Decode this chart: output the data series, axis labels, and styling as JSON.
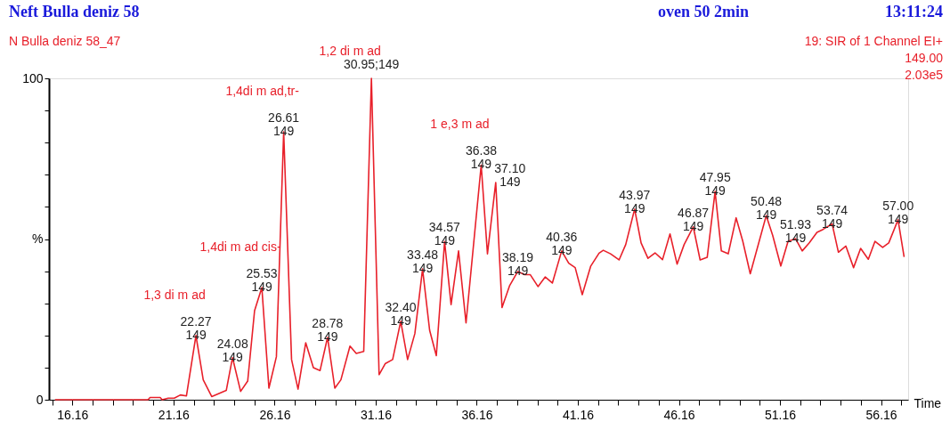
{
  "chart_data": {
    "type": "line",
    "title": "Neft Bulla deniz 58",
    "subtitle": "N Bulla deniz 58_47",
    "xlabel": "Time",
    "x": [
      15.3,
      19.9,
      20.0,
      20.5,
      20.6,
      20.9,
      21.2,
      21.5,
      21.8,
      22.27,
      22.63,
      23.05,
      23.77,
      24.08,
      24.48,
      24.83,
      25.17,
      25.53,
      25.88,
      26.25,
      26.61,
      27.0,
      27.32,
      27.7,
      28.08,
      28.41,
      28.78,
      29.14,
      29.44,
      29.89,
      30.2,
      30.57,
      30.95,
      31.33,
      31.63,
      32.0,
      32.4,
      32.74,
      33.1,
      33.48,
      33.83,
      34.16,
      34.57,
      34.89,
      35.26,
      35.63,
      36.38,
      36.69,
      37.1,
      37.41,
      37.78,
      38.19,
      38.53,
      38.81,
      39.19,
      39.55,
      39.9,
      40.36,
      40.71,
      41.03,
      41.38,
      41.8,
      42.21,
      42.42,
      42.78,
      43.2,
      43.53,
      43.97,
      44.29,
      44.63,
      44.98,
      45.35,
      45.72,
      46.07,
      46.42,
      46.87,
      47.21,
      47.56,
      47.95,
      48.26,
      48.6,
      48.99,
      49.32,
      49.69,
      50.48,
      50.8,
      51.2,
      51.56,
      51.93,
      52.26,
      52.61,
      52.99,
      53.29,
      53.74,
      54.05,
      54.42,
      54.8,
      55.15,
      55.53,
      55.86,
      56.24,
      56.54,
      57.0,
      57.3
    ],
    "series": [
      {
        "color": "#e8202a",
        "values": [
          0,
          0,
          0.7,
          0.7,
          0,
          0.5,
          0.5,
          1.5,
          1.2,
          20.0,
          6.2,
          1.0,
          2.9,
          13.1,
          2.6,
          5.8,
          27.7,
          34.9,
          3.6,
          13.4,
          83.4,
          12.5,
          3.3,
          17.7,
          10.0,
          9.1,
          19.4,
          3.6,
          6.2,
          16.7,
          14.4,
          15.0,
          100,
          7.8,
          11.2,
          12.5,
          24.4,
          12.5,
          20.6,
          40.7,
          21.6,
          13.7,
          49.2,
          29.6,
          46.3,
          23.9,
          73.0,
          45.4,
          67.6,
          28.7,
          35.4,
          39.9,
          38.9,
          38.9,
          35.2,
          38.2,
          36.3,
          46.3,
          42.5,
          41.1,
          32.7,
          41.6,
          45.6,
          46.5,
          45.4,
          43.5,
          48.3,
          59.3,
          48.8,
          44.0,
          45.7,
          43.6,
          51.6,
          42.2,
          48.3,
          53.8,
          43.5,
          44.3,
          64.8,
          46.3,
          45.4,
          56.6,
          49.3,
          39.2,
          57.3,
          51.1,
          41.6,
          49.3,
          50.1,
          46.3,
          48.8,
          52.1,
          53.0,
          54.7,
          45.9,
          47.8,
          41.1,
          47.1,
          43.7,
          49.3,
          47.4,
          48.8,
          56.0,
          44.4
        ]
      }
    ],
    "xlim": [
      15.0,
      57.5
    ],
    "xticks": [
      {
        "value": 15.16,
        "label": null
      },
      16.16,
      {
        "value": 17.16,
        "label": null
      },
      {
        "value": 18.16,
        "label": null
      },
      {
        "value": 19.16,
        "label": null
      },
      {
        "value": 20.16,
        "label": null
      },
      21.16,
      {
        "value": 22.16,
        "label": null
      },
      {
        "value": 23.16,
        "label": null
      },
      {
        "value": 24.16,
        "label": null
      },
      {
        "value": 25.16,
        "label": null
      },
      26.16,
      {
        "value": 27.16,
        "label": null
      },
      {
        "value": 28.16,
        "label": null
      },
      {
        "value": 29.16,
        "label": null
      },
      {
        "value": 30.16,
        "label": null
      },
      31.16,
      {
        "value": 32.16,
        "label": null
      },
      {
        "value": 33.16,
        "label": null
      },
      {
        "value": 34.16,
        "label": null
      },
      {
        "value": 35.16,
        "label": null
      },
      36.16,
      {
        "value": 37.16,
        "label": null
      },
      {
        "value": 38.16,
        "label": null
      },
      {
        "value": 39.16,
        "label": null
      },
      {
        "value": 40.16,
        "label": null
      },
      41.16,
      {
        "value": 42.16,
        "label": null
      },
      {
        "value": 43.16,
        "label": null
      },
      {
        "value": 44.16,
        "label": null
      },
      {
        "value": 45.16,
        "label": null
      },
      46.16,
      {
        "value": 47.16,
        "label": null
      },
      {
        "value": 48.16,
        "label": null
      },
      {
        "value": 49.16,
        "label": null
      },
      {
        "value": 50.16,
        "label": null
      },
      51.16,
      {
        "value": 52.16,
        "label": null
      },
      {
        "value": 53.16,
        "label": null
      },
      {
        "value": 54.16,
        "label": null
      },
      {
        "value": 55.16,
        "label": null
      },
      56.16,
      {
        "value": 57.16,
        "label": null
      }
    ],
    "ylim": [
      0,
      100
    ],
    "yticks": [
      0,
      {
        "value": 10,
        "label": null
      },
      {
        "value": 20,
        "label": null
      },
      {
        "value": 30,
        "label": null
      },
      {
        "value": 40,
        "label": null
      },
      {
        "value": 50,
        "label": "%"
      },
      {
        "value": 60,
        "label": null
      },
      {
        "value": 70,
        "label": null
      },
      {
        "value": 80,
        "label": null
      },
      {
        "value": 90,
        "label": null
      },
      100
    ],
    "grid": false,
    "annotations": [
      "oven 50 2min",
      "13:11:24",
      "19: SIR of 1 Channel EI+",
      "149.00",
      "2.03e5",
      {
        "text": "22.27\n149",
        "x": 22.27,
        "y": 20.0
      },
      {
        "text": "1,3 di m ad",
        "x": 22.27,
        "y": 20.0
      },
      {
        "text": "24.08\n149",
        "x": 24.08,
        "y": 13.1
      },
      {
        "text": "25.53\n149",
        "x": 25.53,
        "y": 34.9
      },
      {
        "text": "1,4di m ad cis-",
        "x": 25.53,
        "y": 34.9
      },
      {
        "text": "26.61\n149",
        "x": 26.61,
        "y": 83.4
      },
      {
        "text": "1,4di m ad,tr-",
        "x": 26.61,
        "y": 83.4
      },
      {
        "text": "28.78\n149",
        "x": 28.78,
        "y": 19.4
      },
      {
        "text": "30.95;149",
        "x": 30.95,
        "y": 100
      },
      {
        "text": "1,2 di m ad",
        "x": 30.95,
        "y": 100
      },
      {
        "text": "32.40\n149",
        "x": 32.4,
        "y": 24.4
      },
      {
        "text": "33.48\n149",
        "x": 33.48,
        "y": 40.7
      },
      {
        "text": "34.57\n149",
        "x": 34.57,
        "y": 49.2
      },
      {
        "text": "36.38\n149",
        "x": 36.38,
        "y": 73.0
      },
      {
        "text": "1 e,3 m ad",
        "x": 36.38,
        "y": 73.0
      },
      {
        "text": "37.10\n149",
        "x": 37.1,
        "y": 67.6
      },
      {
        "text": "38.19\n149",
        "x": 38.19,
        "y": 39.9
      },
      {
        "text": "40.36\n149",
        "x": 40.36,
        "y": 46.3
      },
      {
        "text": "43.97\n149",
        "x": 43.97,
        "y": 59.3
      },
      {
        "text": "46.87\n149",
        "x": 46.87,
        "y": 53.8
      },
      {
        "text": "47.95\n149",
        "x": 47.95,
        "y": 64.8
      },
      {
        "text": "50.48\n149",
        "x": 50.48,
        "y": 57.3
      },
      {
        "text": "51.93\n149",
        "x": 51.93,
        "y": 50.1
      },
      {
        "text": "53.74\n149",
        "x": 53.74,
        "y": 54.7
      },
      {
        "text": "57.00\n149",
        "x": 57.0,
        "y": 56.0
      }
    ]
  }
}
